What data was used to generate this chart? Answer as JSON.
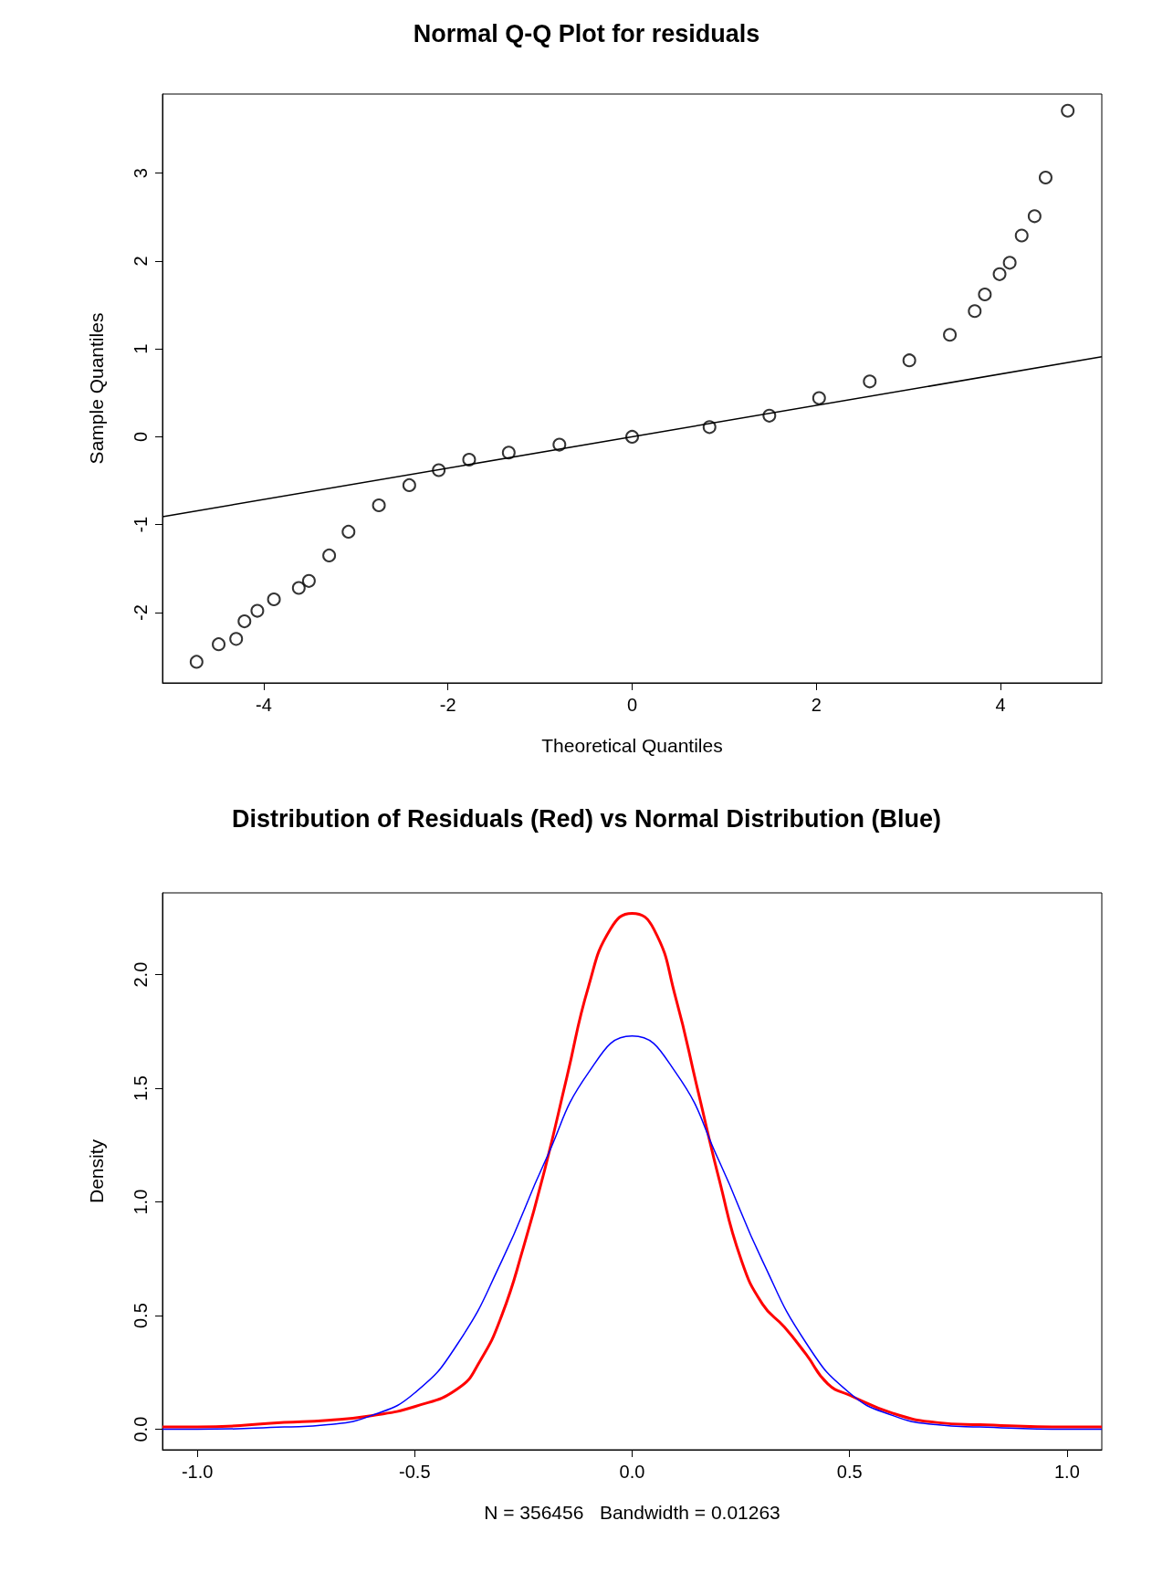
{
  "chart_data": [
    {
      "type": "scatter",
      "title": "Normal Q-Q Plot for residuals",
      "xlabel": "Theoretical Quantiles",
      "ylabel": "Sample Quantiles",
      "xlim": [
        -5.1,
        5.1
      ],
      "ylim": [
        -2.8,
        3.9
      ],
      "xticks": [
        -4,
        -2,
        0,
        2,
        4
      ],
      "yticks": [
        -2,
        -1,
        0,
        1,
        2,
        3
      ],
      "grid": false,
      "marker": "circle",
      "series": [
        {
          "color": "#000000",
          "x": [
            -4.73,
            -4.49,
            -4.3,
            -4.21,
            -4.07,
            -3.89,
            -3.62,
            -3.51,
            -3.29,
            -3.08,
            -2.75,
            -2.42,
            -2.1,
            -1.77,
            -1.34,
            -0.79,
            0,
            0.84,
            1.49,
            2.03,
            2.58,
            3.01,
            3.45,
            3.72,
            3.83,
            3.99,
            4.1,
            4.23,
            4.37,
            4.49,
            4.73
          ],
          "values": [
            -2.56,
            -2.36,
            -2.3,
            -2.1,
            -1.98,
            -1.85,
            -1.72,
            -1.64,
            -1.35,
            -1.08,
            -0.78,
            -0.55,
            -0.38,
            -0.26,
            -0.18,
            -0.09,
            0,
            0.11,
            0.24,
            0.44,
            0.63,
            0.87,
            1.16,
            1.43,
            1.62,
            1.85,
            1.98,
            2.29,
            2.51,
            2.95,
            3.71
          ]
        },
        {
          "type": "line",
          "color": "#000000",
          "line_style": "solid",
          "marker": "none",
          "x": [
            -5.1,
            5.1
          ],
          "values": [
            -0.91,
            0.91
          ]
        }
      ]
    },
    {
      "type": "line",
      "title": "Distribution of Residuals (Red) vs Normal Distribution (Blue)",
      "xlabel": "N = 356456   Bandwidth = 0.01263",
      "ylabel": "Density",
      "xlim": [
        -1.08,
        1.08
      ],
      "ylim": [
        -0.09,
        2.36
      ],
      "xticks": [
        {
          "value": -1,
          "label": "-1.0"
        },
        -0.5,
        {
          "value": 0,
          "label": "0.0"
        },
        0.5,
        {
          "value": 1,
          "label": "1.0"
        }
      ],
      "yticks": [
        {
          "value": 0,
          "label": "0.0"
        },
        0.5,
        {
          "value": 1,
          "label": "1.0"
        },
        1.5,
        {
          "value": 2,
          "label": "2.0"
        }
      ],
      "grid": false,
      "marker": "none",
      "line_style": "solid",
      "series": [
        {
          "color": "#ff0000",
          "x": [
            -1.08,
            -1,
            -0.8,
            -0.7,
            -0.6,
            -0.5,
            -0.4,
            -0.35,
            -0.3,
            -0.25,
            -0.2,
            -0.15,
            -0.1,
            -0.05,
            0,
            0.05,
            0.1,
            0.15,
            0.2,
            0.25,
            0.3,
            0.35,
            0.4,
            0.45,
            0.5,
            0.6,
            0.7,
            0.8,
            1,
            1.08
          ],
          "values": [
            0.01,
            0.01,
            0.03,
            0.04,
            0.06,
            0.1,
            0.18,
            0.3,
            0.5,
            0.8,
            1.15,
            1.55,
            1.95,
            2.2,
            2.27,
            2.2,
            1.9,
            1.5,
            1.1,
            0.75,
            0.55,
            0.45,
            0.33,
            0.2,
            0.15,
            0.07,
            0.03,
            0.02,
            0.01,
            0.01
          ]
        },
        {
          "color": "#0000ff",
          "x": [
            -1.08,
            -1,
            -0.8,
            -0.7,
            -0.6,
            -0.5,
            -0.4,
            -0.3,
            -0.2,
            -0.1,
            0,
            0.1,
            0.2,
            0.3,
            0.4,
            0.5,
            0.6,
            0.7,
            0.8,
            1,
            1.08
          ],
          "values": [
            0,
            0,
            0.01,
            0.02,
            0.06,
            0.16,
            0.38,
            0.74,
            1.18,
            1.57,
            1.73,
            1.57,
            1.18,
            0.74,
            0.38,
            0.16,
            0.06,
            0.02,
            0.01,
            0,
            0
          ]
        }
      ]
    }
  ]
}
